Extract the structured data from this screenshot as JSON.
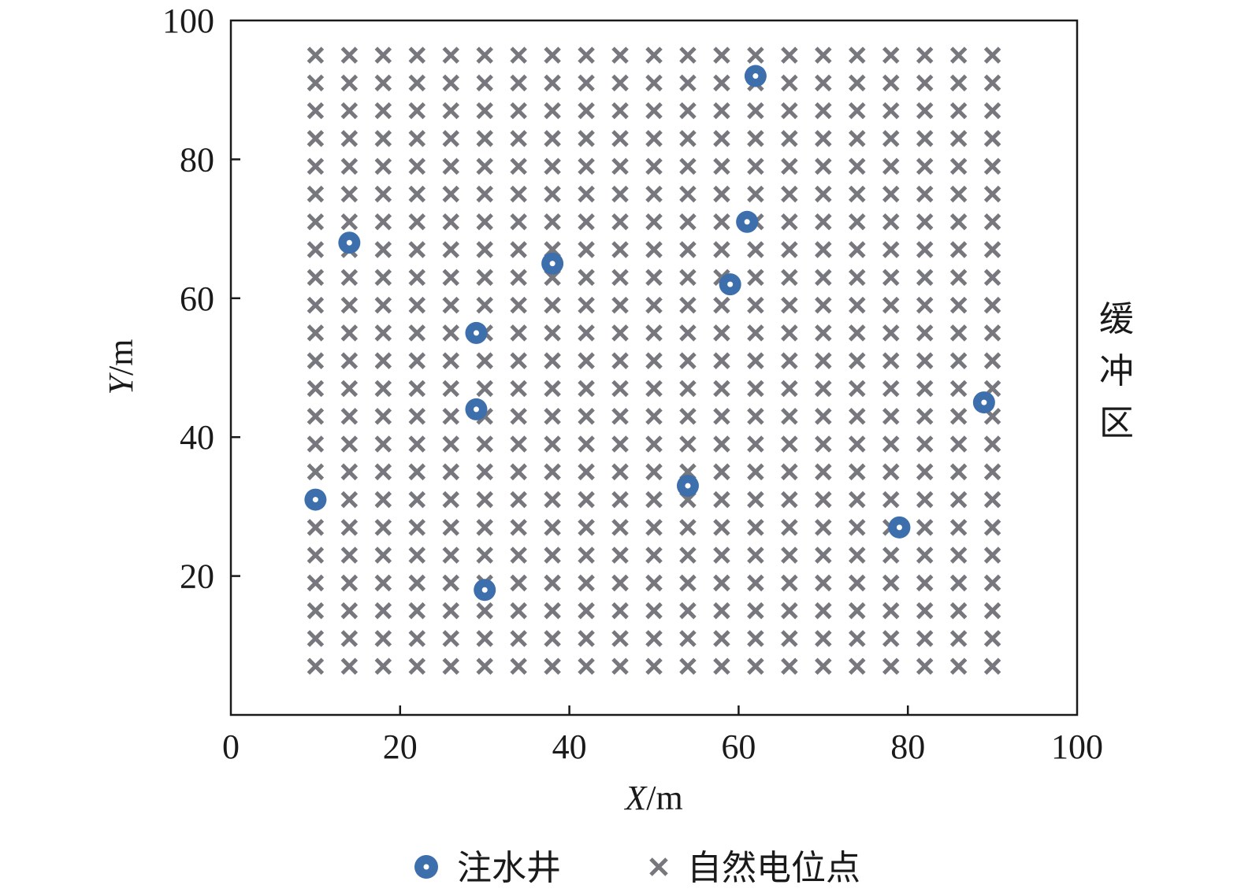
{
  "chart_data": {
    "type": "scatter",
    "xlabel_italic": "X",
    "xlabel_unit": "/m",
    "ylabel_italic": "Y",
    "ylabel_unit": "/m",
    "xlim": [
      0,
      100
    ],
    "ylim": [
      0,
      100
    ],
    "x_ticks": [
      0,
      20,
      40,
      60,
      80,
      100
    ],
    "y_ticks": [
      20,
      40,
      60,
      80,
      100
    ],
    "x_tick_labels": [
      "0",
      "20",
      "40",
      "60",
      "80",
      "100"
    ],
    "y_tick_labels": [
      "20",
      "40",
      "60",
      "80",
      "100"
    ],
    "side_annotation": "缓冲区",
    "grid": false,
    "legend_position": "bottom-center",
    "series": [
      {
        "name": "注水井",
        "marker": "circle",
        "color": "#3d6fad",
        "points": [
          [
            62,
            92
          ],
          [
            14,
            68
          ],
          [
            61,
            71
          ],
          [
            38,
            65
          ],
          [
            59,
            62
          ],
          [
            29,
            55
          ],
          [
            29,
            44
          ],
          [
            89,
            45
          ],
          [
            10,
            31
          ],
          [
            54,
            33
          ],
          [
            79,
            27
          ],
          [
            30,
            18
          ]
        ]
      },
      {
        "name": "自然电位点",
        "marker": "x",
        "color": "#77777e",
        "grid_points": {
          "x_start": 10,
          "x_end": 90,
          "x_step": 4,
          "y_start": 7,
          "y_end": 95,
          "y_step": 4
        }
      }
    ]
  }
}
